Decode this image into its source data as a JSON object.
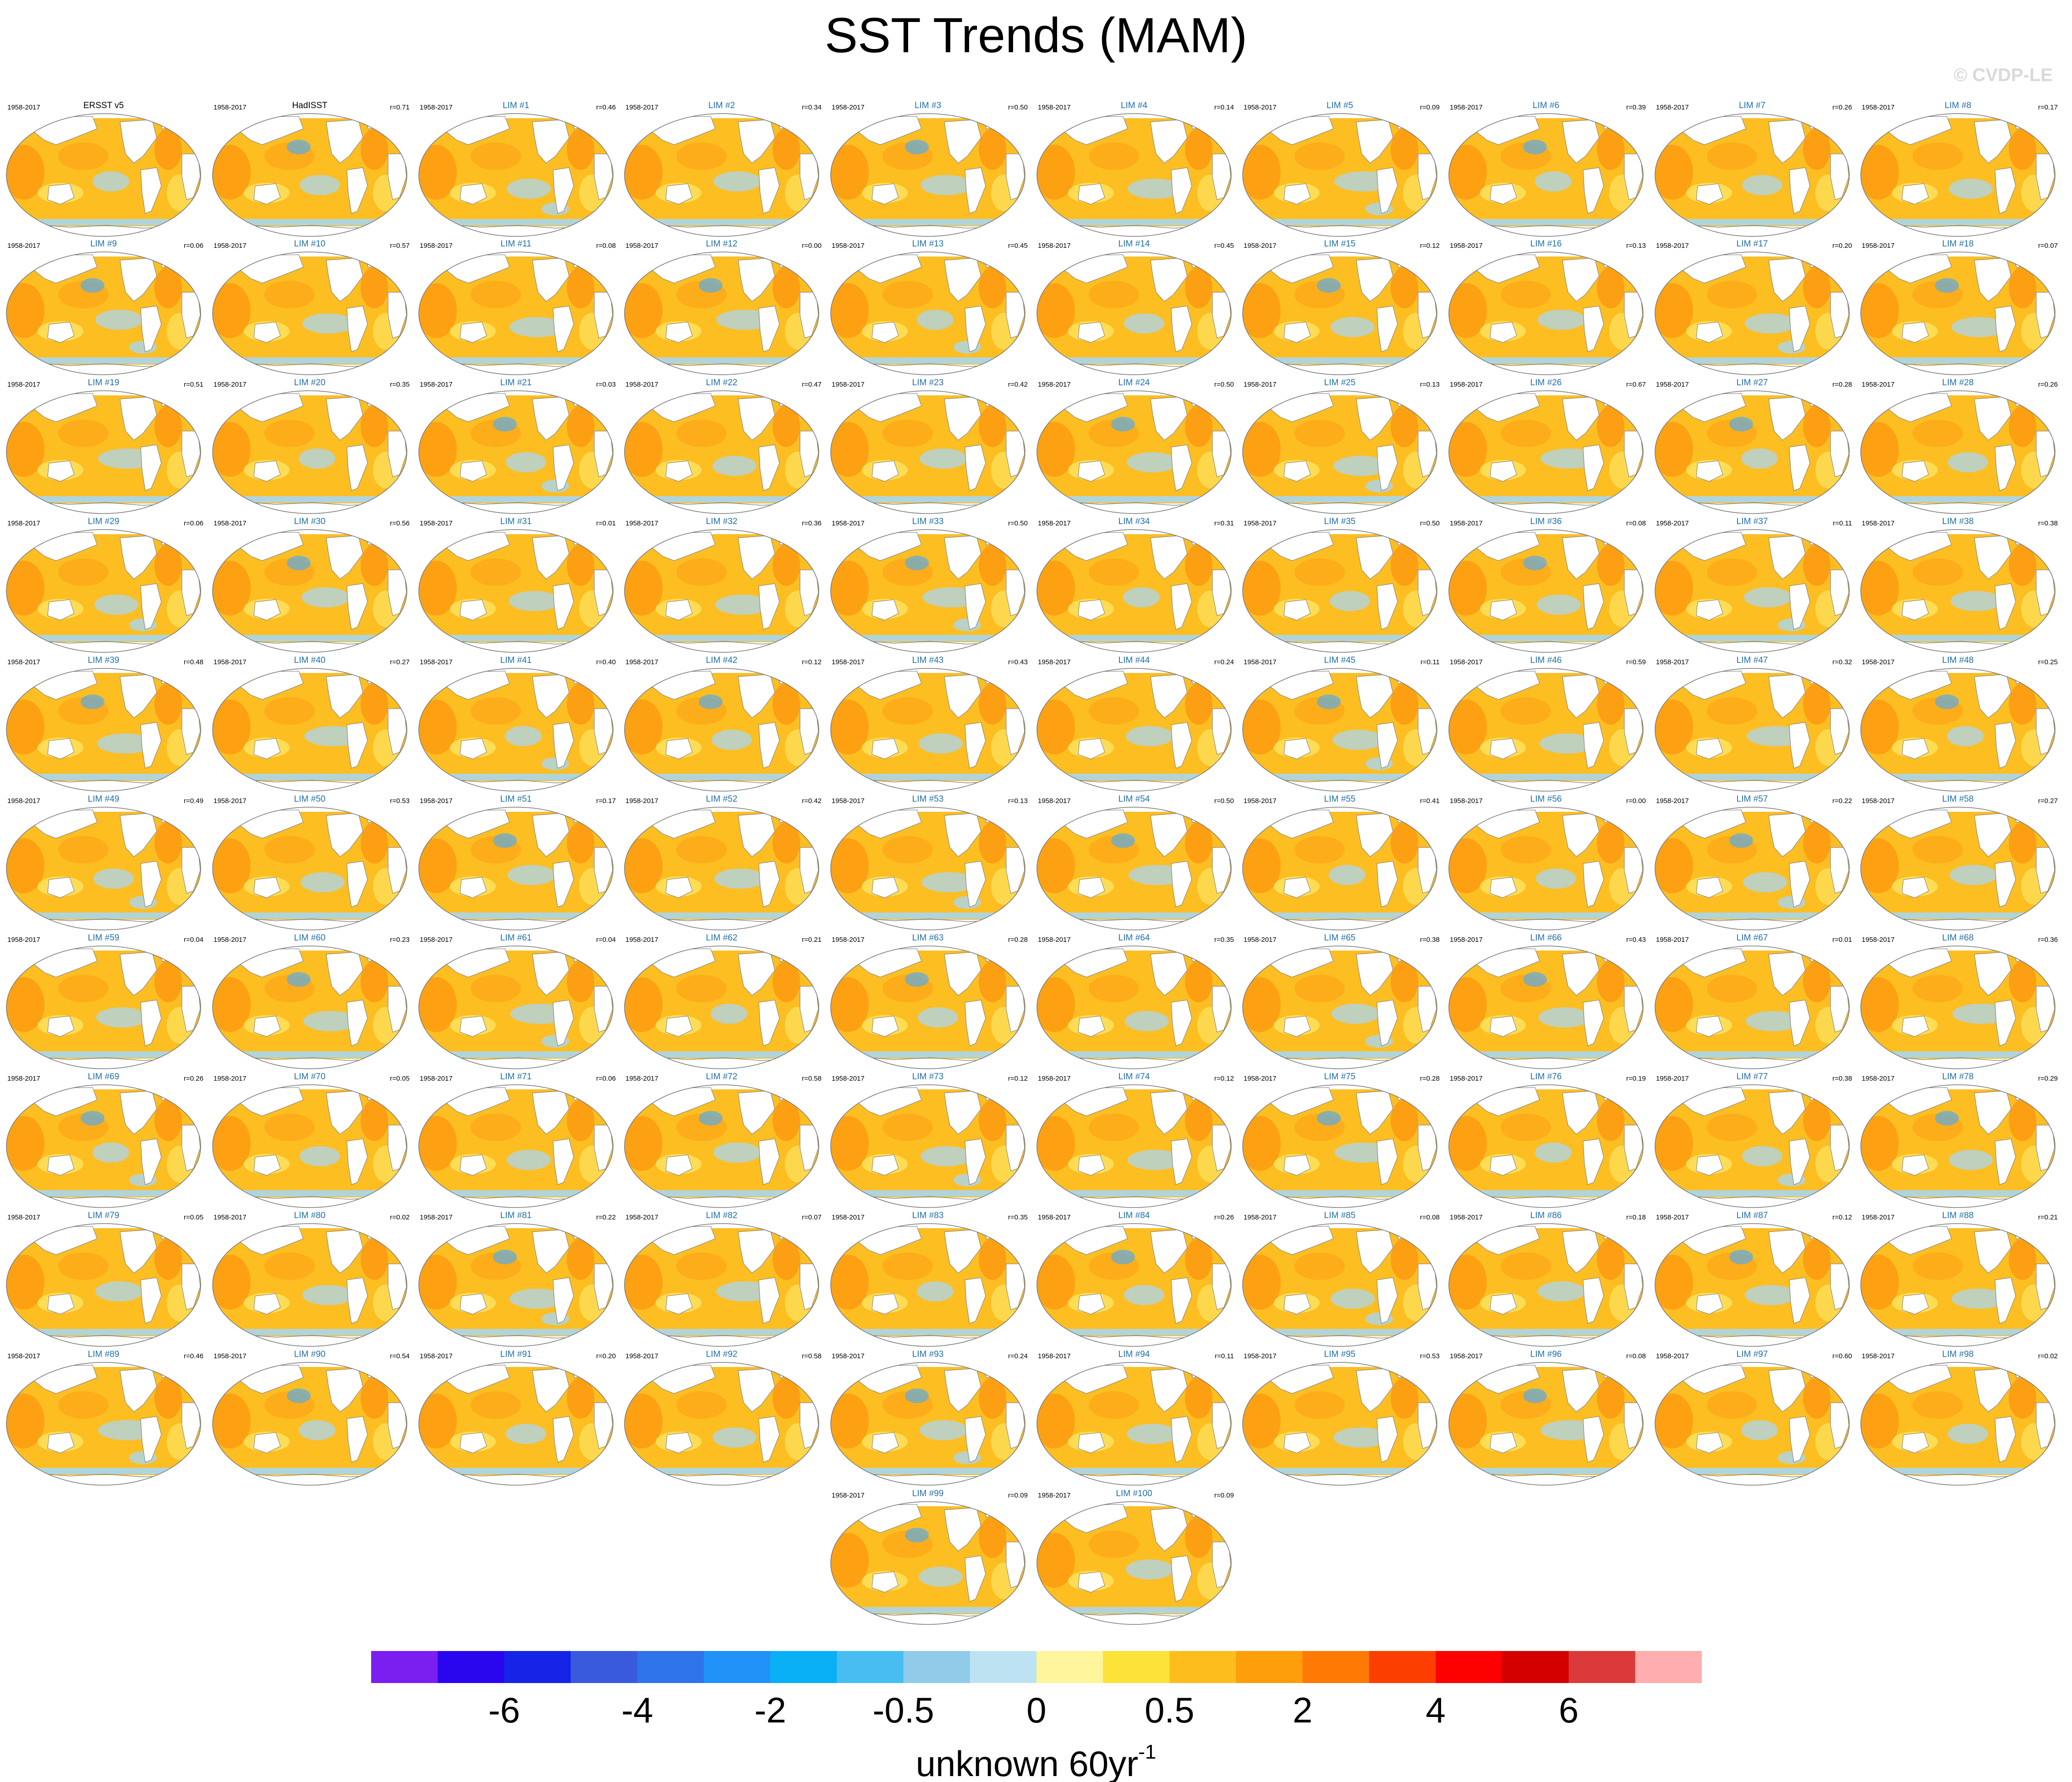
{
  "title": "SST Trends (MAM)",
  "watermark": "© CVDP-LE",
  "panels": [
    {
      "period": "1958-2017",
      "name": "ERSST v5",
      "corr": ""
    },
    {
      "period": "1958-2017",
      "name": "HadISST",
      "corr": "r=0.71"
    },
    {
      "period": "1958-2017",
      "name": "LIM #1",
      "corr": "r=0.46"
    },
    {
      "period": "1958-2017",
      "name": "LIM #2",
      "corr": "r=0.34"
    },
    {
      "period": "1958-2017",
      "name": "LIM #3",
      "corr": "r=0.50"
    },
    {
      "period": "1958-2017",
      "name": "LIM #4",
      "corr": "r=0.14"
    },
    {
      "period": "1958-2017",
      "name": "LIM #5",
      "corr": "r=0.09"
    },
    {
      "period": "1958-2017",
      "name": "LIM #6",
      "corr": "r=0.39"
    },
    {
      "period": "1958-2017",
      "name": "LIM #7",
      "corr": "r=0.26"
    },
    {
      "period": "1958-2017",
      "name": "LIM #8",
      "corr": "r=0.17"
    },
    {
      "period": "1958-2017",
      "name": "LIM #9",
      "corr": "r=0.06"
    },
    {
      "period": "1958-2017",
      "name": "LIM #10",
      "corr": "r=0.57"
    },
    {
      "period": "1958-2017",
      "name": "LIM #11",
      "corr": "r=0.08"
    },
    {
      "period": "1958-2017",
      "name": "LIM #12",
      "corr": "r=0.00"
    },
    {
      "period": "1958-2017",
      "name": "LIM #13",
      "corr": "r=0.45"
    },
    {
      "period": "1958-2017",
      "name": "LIM #14",
      "corr": "r=0.45"
    },
    {
      "period": "1958-2017",
      "name": "LIM #15",
      "corr": "r=0.12"
    },
    {
      "period": "1958-2017",
      "name": "LIM #16",
      "corr": "r=0.13"
    },
    {
      "period": "1958-2017",
      "name": "LIM #17",
      "corr": "r=0.20"
    },
    {
      "period": "1958-2017",
      "name": "LIM #18",
      "corr": "r=0.07"
    },
    {
      "period": "1958-2017",
      "name": "LIM #19",
      "corr": "r=0.51"
    },
    {
      "period": "1958-2017",
      "name": "LIM #20",
      "corr": "r=0.35"
    },
    {
      "period": "1958-2017",
      "name": "LIM #21",
      "corr": "r=0.03"
    },
    {
      "period": "1958-2017",
      "name": "LIM #22",
      "corr": "r=0.47"
    },
    {
      "period": "1958-2017",
      "name": "LIM #23",
      "corr": "r=0.42"
    },
    {
      "period": "1958-2017",
      "name": "LIM #24",
      "corr": "r=0.50"
    },
    {
      "period": "1958-2017",
      "name": "LIM #25",
      "corr": "r=0.13"
    },
    {
      "period": "1958-2017",
      "name": "LIM #26",
      "corr": "r=0.67"
    },
    {
      "period": "1958-2017",
      "name": "LIM #27",
      "corr": "r=0.28"
    },
    {
      "period": "1958-2017",
      "name": "LIM #28",
      "corr": "r=0.26"
    },
    {
      "period": "1958-2017",
      "name": "LIM #29",
      "corr": "r=0.06"
    },
    {
      "period": "1958-2017",
      "name": "LIM #30",
      "corr": "r=0.56"
    },
    {
      "period": "1958-2017",
      "name": "LIM #31",
      "corr": "r=0.01"
    },
    {
      "period": "1958-2017",
      "name": "LIM #32",
      "corr": "r=0.36"
    },
    {
      "period": "1958-2017",
      "name": "LIM #33",
      "corr": "r=0.50"
    },
    {
      "period": "1958-2017",
      "name": "LIM #34",
      "corr": "r=0.31"
    },
    {
      "period": "1958-2017",
      "name": "LIM #35",
      "corr": "r=0.50"
    },
    {
      "period": "1958-2017",
      "name": "LIM #36",
      "corr": "r=0.08"
    },
    {
      "period": "1958-2017",
      "name": "LIM #37",
      "corr": "r=0.11"
    },
    {
      "period": "1958-2017",
      "name": "LIM #38",
      "corr": "r=0.38"
    },
    {
      "period": "1958-2017",
      "name": "LIM #39",
      "corr": "r=0.48"
    },
    {
      "period": "1958-2017",
      "name": "LIM #40",
      "corr": "r=0.27"
    },
    {
      "period": "1958-2017",
      "name": "LIM #41",
      "corr": "r=0.40"
    },
    {
      "period": "1958-2017",
      "name": "LIM #42",
      "corr": "r=0.12"
    },
    {
      "period": "1958-2017",
      "name": "LIM #43",
      "corr": "r=0.43"
    },
    {
      "period": "1958-2017",
      "name": "LIM #44",
      "corr": "r=0.24"
    },
    {
      "period": "1958-2017",
      "name": "LIM #45",
      "corr": "r=0.11"
    },
    {
      "period": "1958-2017",
      "name": "LIM #46",
      "corr": "r=0.59"
    },
    {
      "period": "1958-2017",
      "name": "LIM #47",
      "corr": "r=0.32"
    },
    {
      "period": "1958-2017",
      "name": "LIM #48",
      "corr": "r=0.25"
    },
    {
      "period": "1958-2017",
      "name": "LIM #49",
      "corr": "r=0.49"
    },
    {
      "period": "1958-2017",
      "name": "LIM #50",
      "corr": "r=0.53"
    },
    {
      "period": "1958-2017",
      "name": "LIM #51",
      "corr": "r=0.17"
    },
    {
      "period": "1958-2017",
      "name": "LIM #52",
      "corr": "r=0.42"
    },
    {
      "period": "1958-2017",
      "name": "LIM #53",
      "corr": "r=0.13"
    },
    {
      "period": "1958-2017",
      "name": "LIM #54",
      "corr": "r=0.50"
    },
    {
      "period": "1958-2017",
      "name": "LIM #55",
      "corr": "r=0.41"
    },
    {
      "period": "1958-2017",
      "name": "LIM #56",
      "corr": "r=0.00"
    },
    {
      "period": "1958-2017",
      "name": "LIM #57",
      "corr": "r=0.22"
    },
    {
      "period": "1958-2017",
      "name": "LIM #58",
      "corr": "r=0.27"
    },
    {
      "period": "1958-2017",
      "name": "LIM #59",
      "corr": "r=0.04"
    },
    {
      "period": "1958-2017",
      "name": "LIM #60",
      "corr": "r=0.23"
    },
    {
      "period": "1958-2017",
      "name": "LIM #61",
      "corr": "r=0.04"
    },
    {
      "period": "1958-2017",
      "name": "LIM #62",
      "corr": "r=0.21"
    },
    {
      "period": "1958-2017",
      "name": "LIM #63",
      "corr": "r=0.28"
    },
    {
      "period": "1958-2017",
      "name": "LIM #64",
      "corr": "r=0.35"
    },
    {
      "period": "1958-2017",
      "name": "LIM #65",
      "corr": "r=0.38"
    },
    {
      "period": "1958-2017",
      "name": "LIM #66",
      "corr": "r=0.43"
    },
    {
      "period": "1958-2017",
      "name": "LIM #67",
      "corr": "r=0.01"
    },
    {
      "period": "1958-2017",
      "name": "LIM #68",
      "corr": "r=0.36"
    },
    {
      "period": "1958-2017",
      "name": "LIM #69",
      "corr": "r=0.26"
    },
    {
      "period": "1958-2017",
      "name": "LIM #70",
      "corr": "r=0.05"
    },
    {
      "period": "1958-2017",
      "name": "LIM #71",
      "corr": "r=0.06"
    },
    {
      "period": "1958-2017",
      "name": "LIM #72",
      "corr": "r=0.58"
    },
    {
      "period": "1958-2017",
      "name": "LIM #73",
      "corr": "r=0.12"
    },
    {
      "period": "1958-2017",
      "name": "LIM #74",
      "corr": "r=0.12"
    },
    {
      "period": "1958-2017",
      "name": "LIM #75",
      "corr": "r=0.28"
    },
    {
      "period": "1958-2017",
      "name": "LIM #76",
      "corr": "r=0.19"
    },
    {
      "period": "1958-2017",
      "name": "LIM #77",
      "corr": "r=0.38"
    },
    {
      "period": "1958-2017",
      "name": "LIM #78",
      "corr": "r=0.29"
    },
    {
      "period": "1958-2017",
      "name": "LIM #79",
      "corr": "r=0.05"
    },
    {
      "period": "1958-2017",
      "name": "LIM #80",
      "corr": "r=0.02"
    },
    {
      "period": "1958-2017",
      "name": "LIM #81",
      "corr": "r=0.22"
    },
    {
      "period": "1958-2017",
      "name": "LIM #82",
      "corr": "r=0.07"
    },
    {
      "period": "1958-2017",
      "name": "LIM #83",
      "corr": "r=0.35"
    },
    {
      "period": "1958-2017",
      "name": "LIM #84",
      "corr": "r=0.26"
    },
    {
      "period": "1958-2017",
      "name": "LIM #85",
      "corr": "r=0.08"
    },
    {
      "period": "1958-2017",
      "name": "LIM #86",
      "corr": "r=0.18"
    },
    {
      "period": "1958-2017",
      "name": "LIM #87",
      "corr": "r=0.12"
    },
    {
      "period": "1958-2017",
      "name": "LIM #88",
      "corr": "r=0.21"
    },
    {
      "period": "1958-2017",
      "name": "LIM #89",
      "corr": "r=0.46"
    },
    {
      "period": "1958-2017",
      "name": "LIM #90",
      "corr": "r=0.54"
    },
    {
      "period": "1958-2017",
      "name": "LIM #91",
      "corr": "r=0.20"
    },
    {
      "period": "1958-2017",
      "name": "LIM #92",
      "corr": "r=0.58"
    },
    {
      "period": "1958-2017",
      "name": "LIM #93",
      "corr": "r=0.24"
    },
    {
      "period": "1958-2017",
      "name": "LIM #94",
      "corr": "r=0.11"
    },
    {
      "period": "1958-2017",
      "name": "LIM #95",
      "corr": "r=0.53"
    },
    {
      "period": "1958-2017",
      "name": "LIM #96",
      "corr": "r=0.08"
    },
    {
      "period": "1958-2017",
      "name": "LIM #97",
      "corr": "r=0.60"
    },
    {
      "period": "1958-2017",
      "name": "LIM #98",
      "corr": "r=0.02"
    },
    {
      "period": "1958-2017",
      "name": "LIM #99",
      "corr": "r=0.09"
    },
    {
      "period": "1958-2017",
      "name": "LIM #100",
      "corr": "r=0.09"
    }
  ],
  "colors": {
    "obs_title": "#000000",
    "model_title": "#1f6fa8",
    "land": "#ffffff",
    "coast": "#777777",
    "warm_base": "#fdbe22",
    "warm_strong": "#fc9a10",
    "weak_warm": "#fde96a",
    "cool": "#a9d6f0",
    "cold": "#5aa9e6"
  },
  "colorbar": {
    "colors": [
      "#7a1ff0",
      "#2a06ee",
      "#1524e6",
      "#3a5ade",
      "#2f74ea",
      "#2092f8",
      "#0ab0f5",
      "#47bdf2",
      "#90cbea",
      "#bde3f2",
      "#fff59c",
      "#fde23a",
      "#fdbd1c",
      "#fd9e0a",
      "#fe7a04",
      "#fc3f00",
      "#fd0000",
      "#d40000",
      "#dc3a3a",
      "#feaeae"
    ],
    "labels": [
      "-6",
      "-4",
      "-2",
      "-0.5",
      "0",
      "0.5",
      "2",
      "4",
      "6"
    ],
    "units": "unknown 60yr",
    "units_sup": "-1"
  }
}
